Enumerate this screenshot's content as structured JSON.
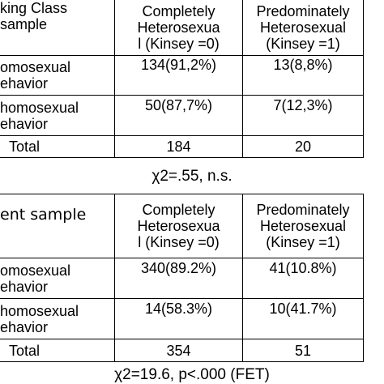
{
  "table1": {
    "header_col1": [
      "king Class",
      "sample"
    ],
    "header_col2": [
      "Completely",
      "Heterosexua",
      "l (Kinsey =0)"
    ],
    "header_col3": [
      "Predominately",
      "Heterosexual",
      "(Kinsey =1)"
    ],
    "rows": [
      {
        "label": [
          "omosexual",
          "ehavior"
        ],
        "c1": "134(91,2%)",
        "c2": "13(8,8%)"
      },
      {
        "label": [
          "homosexual",
          "ehavior"
        ],
        "c1": "50(87,7%)",
        "c2": "7(12,3%)"
      },
      {
        "label": [
          "Total"
        ],
        "c1": "184",
        "c2": "20"
      }
    ],
    "stat": "χ2=.55, n.s."
  },
  "table2": {
    "header_col1": [
      "ent sample"
    ],
    "header_col2": [
      "Completely",
      "Heterosexua",
      "l (Kinsey =0)"
    ],
    "header_col3": [
      "Predominately",
      "Heterosexual",
      "(Kinsey =1)"
    ],
    "rows": [
      {
        "label": [
          "omosexual",
          "ehavior"
        ],
        "c1": "340(89.2%)",
        "c2": "41(10.8%)"
      },
      {
        "label": [
          "homosexual",
          "ehavior"
        ],
        "c1": "14(58.3%)",
        "c2": "10(41.7%)"
      },
      {
        "label": [
          "Total"
        ],
        "c1": "354",
        "c2": "51"
      }
    ],
    "stat": "χ2=19.6, p<.000 (FET)"
  }
}
